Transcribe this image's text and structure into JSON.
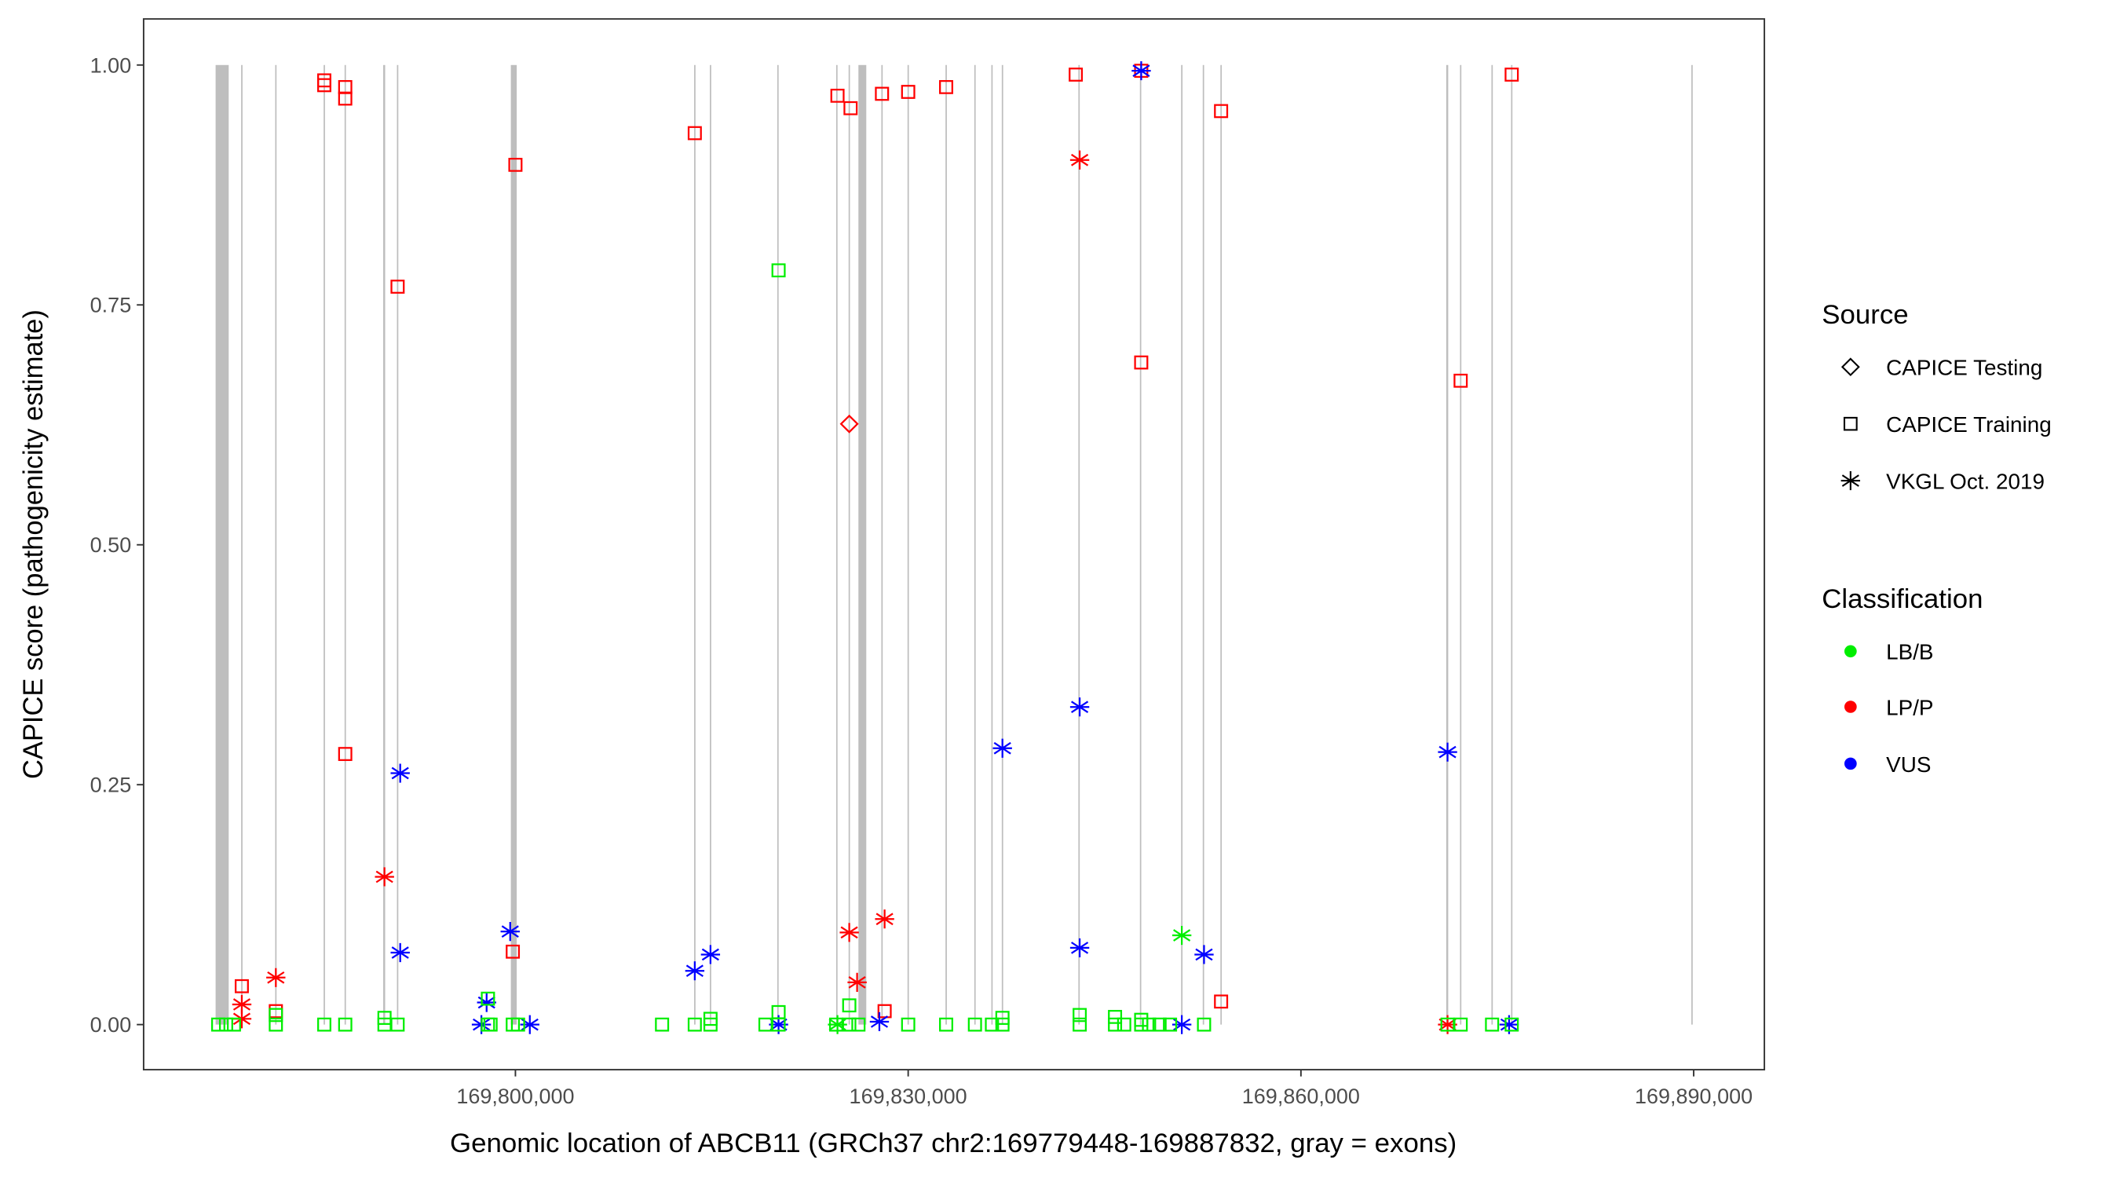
{
  "chart_data": {
    "type": "scatter",
    "title": "",
    "xlabel": "Genomic location of ABCB11 (GRCh37 chr2:169779448-169887832, gray = exons)",
    "ylabel": "CAPICE score (pathogenicity estimate)",
    "xlim": [
      169771600,
      169895400
    ],
    "ylim": [
      -0.047,
      1.048
    ],
    "x_ticks": [
      {
        "value": 169800000,
        "label": "169,800,000"
      },
      {
        "value": 169830000,
        "label": "169,830,000"
      },
      {
        "value": 169860000,
        "label": "169,860,000"
      },
      {
        "value": 169890000,
        "label": "169,890,000"
      }
    ],
    "y_ticks": [
      {
        "value": 0,
        "label": "0.00"
      },
      {
        "value": 0.25,
        "label": "0.25"
      },
      {
        "value": 0.5,
        "label": "0.50"
      },
      {
        "value": 0.75,
        "label": "0.75"
      },
      {
        "value": 1.0,
        "label": "1.00"
      }
    ],
    "grid": false,
    "exons": [
      [
        169777100,
        169778100
      ],
      [
        169779050,
        169779150
      ],
      [
        169781650,
        169781750
      ],
      [
        169785350,
        169785450
      ],
      [
        169786950,
        169787050
      ],
      [
        169789900,
        169790050
      ],
      [
        169790950,
        169791050
      ],
      [
        169799650,
        169800100
      ],
      [
        169813650,
        169813750
      ],
      [
        169814850,
        169814950
      ],
      [
        169820000,
        169820100
      ],
      [
        169824500,
        169824600
      ],
      [
        169825450,
        169825550
      ],
      [
        169826200,
        169826800
      ],
      [
        169827950,
        169828050
      ],
      [
        169829950,
        169830050
      ],
      [
        169832850,
        169832950
      ],
      [
        169835050,
        169835150
      ],
      [
        169836350,
        169836450
      ],
      [
        169837150,
        169837250
      ],
      [
        169843000,
        169843100
      ],
      [
        169847700,
        169847800
      ],
      [
        169850850,
        169850950
      ],
      [
        169852500,
        169852600
      ],
      [
        169853850,
        169853950
      ],
      [
        169871100,
        169871250
      ],
      [
        169872150,
        169872250
      ],
      [
        169874550,
        169874650
      ],
      [
        169876050,
        169876150
      ],
      [
        169889820,
        169889920
      ]
    ],
    "legend": {
      "placement": "right",
      "source_title": "Source",
      "source_entries": [
        {
          "label": "CAPICE Testing",
          "shape": "diamond"
        },
        {
          "label": "CAPICE Training",
          "shape": "square"
        },
        {
          "label": "VKGL Oct. 2019",
          "shape": "asterisk"
        }
      ],
      "class_title": "Classification",
      "class_entries": [
        {
          "label": "LB/B",
          "color": "#00ee00"
        },
        {
          "label": "LP/P",
          "color": "#ff0000"
        },
        {
          "label": "VUS",
          "color": "#0000ff"
        }
      ]
    },
    "colors": {
      "LB/B": "#00ee00",
      "LP/P": "#ff0000",
      "VUS": "#0000ff",
      "exon": "#bebebe"
    },
    "points": [
      [
        169785400,
        0.984,
        "CAPICE Training",
        "LP/P"
      ],
      [
        169785400,
        0.979,
        "CAPICE Training",
        "LP/P"
      ],
      [
        169787000,
        0.977,
        "CAPICE Training",
        "LP/P"
      ],
      [
        169787000,
        0.965,
        "CAPICE Training",
        "LP/P"
      ],
      [
        169791000,
        0.769,
        "CAPICE Training",
        "LP/P"
      ],
      [
        169787000,
        0.282,
        "CAPICE Training",
        "LP/P"
      ],
      [
        169800000,
        0.896,
        "CAPICE Training",
        "LP/P"
      ],
      [
        169779100,
        0.04,
        "CAPICE Training",
        "LP/P"
      ],
      [
        169781700,
        0.014,
        "CAPICE Training",
        "LP/P"
      ],
      [
        169799800,
        0.076,
        "CAPICE Training",
        "LP/P"
      ],
      [
        169813700,
        0.929,
        "CAPICE Training",
        "LP/P"
      ],
      [
        169824600,
        0.968,
        "CAPICE Training",
        "LP/P"
      ],
      [
        169825600,
        0.955,
        "CAPICE Training",
        "LP/P"
      ],
      [
        169828000,
        0.97,
        "CAPICE Training",
        "LP/P"
      ],
      [
        169830000,
        0.972,
        "CAPICE Training",
        "LP/P"
      ],
      [
        169832900,
        0.977,
        "CAPICE Training",
        "LP/P"
      ],
      [
        169842800,
        0.99,
        "CAPICE Training",
        "LP/P"
      ],
      [
        169847800,
        0.994,
        "CAPICE Training",
        "LP/P"
      ],
      [
        169847800,
        0.69,
        "CAPICE Training",
        "LP/P"
      ],
      [
        169853900,
        0.952,
        "CAPICE Training",
        "LP/P"
      ],
      [
        169853900,
        0.024,
        "CAPICE Training",
        "LP/P"
      ],
      [
        169876100,
        0.99,
        "CAPICE Training",
        "LP/P"
      ],
      [
        169872200,
        0.671,
        "CAPICE Training",
        "LP/P"
      ],
      [
        169828200,
        0.014,
        "CAPICE Training",
        "LP/P"
      ],
      [
        169825500,
        0.626,
        "CAPICE Testing",
        "LP/P"
      ],
      [
        169779100,
        0.021,
        "VKGL Oct. 2019",
        "LP/P"
      ],
      [
        169779100,
        0.006,
        "VKGL Oct. 2019",
        "LP/P"
      ],
      [
        169781700,
        0.049,
        "VKGL Oct. 2019",
        "LP/P"
      ],
      [
        169790000,
        0.154,
        "VKGL Oct. 2019",
        "LP/P"
      ],
      [
        169825500,
        0.096,
        "VKGL Oct. 2019",
        "LP/P"
      ],
      [
        169826100,
        0.044,
        "VKGL Oct. 2019",
        "LP/P"
      ],
      [
        169828200,
        0.11,
        "VKGL Oct. 2019",
        "LP/P"
      ],
      [
        169843100,
        0.901,
        "VKGL Oct. 2019",
        "LP/P"
      ],
      [
        169871200,
        0.0,
        "VKGL Oct. 2019",
        "LP/P"
      ],
      [
        169791200,
        0.262,
        "VKGL Oct. 2019",
        "VUS"
      ],
      [
        169791200,
        0.075,
        "VKGL Oct. 2019",
        "VUS"
      ],
      [
        169797800,
        0.023,
        "VKGL Oct. 2019",
        "VUS"
      ],
      [
        169797400,
        0.0,
        "VKGL Oct. 2019",
        "VUS"
      ],
      [
        169799600,
        0.097,
        "VKGL Oct. 2019",
        "VUS"
      ],
      [
        169801100,
        0.0,
        "VKGL Oct. 2019",
        "VUS"
      ],
      [
        169813700,
        0.056,
        "VKGL Oct. 2019",
        "VUS"
      ],
      [
        169814900,
        0.073,
        "VKGL Oct. 2019",
        "VUS"
      ],
      [
        169820100,
        0.0,
        "VKGL Oct. 2019",
        "VUS"
      ],
      [
        169827800,
        0.003,
        "VKGL Oct. 2019",
        "VUS"
      ],
      [
        169837200,
        0.288,
        "VKGL Oct. 2019",
        "VUS"
      ],
      [
        169843100,
        0.331,
        "VKGL Oct. 2019",
        "VUS"
      ],
      [
        169843100,
        0.08,
        "VKGL Oct. 2019",
        "VUS"
      ],
      [
        169847800,
        0.994,
        "VKGL Oct. 2019",
        "VUS"
      ],
      [
        169850900,
        0.0,
        "VKGL Oct. 2019",
        "VUS"
      ],
      [
        169852600,
        0.073,
        "VKGL Oct. 2019",
        "VUS"
      ],
      [
        169871200,
        0.284,
        "VKGL Oct. 2019",
        "VUS"
      ],
      [
        169875900,
        0.0,
        "VKGL Oct. 2019",
        "VUS"
      ],
      [
        169850900,
        0.093,
        "VKGL Oct. 2019",
        "LB/B"
      ],
      [
        169824600,
        0.0,
        "VKGL Oct. 2019",
        "LB/B"
      ],
      [
        169820100,
        0.786,
        "CAPICE Training",
        "LB/B"
      ],
      [
        169825500,
        0.02,
        "CAPICE Training",
        "LB/B"
      ],
      [
        169820100,
        0.013,
        "CAPICE Training",
        "LB/B"
      ],
      [
        169797900,
        0.027,
        "CAPICE Training",
        "LB/B"
      ],
      [
        169790000,
        0.007,
        "CAPICE Training",
        "LB/B"
      ],
      [
        169814900,
        0.006,
        "CAPICE Training",
        "LB/B"
      ],
      [
        169837200,
        0.007,
        "CAPICE Training",
        "LB/B"
      ],
      [
        169845800,
        0.008,
        "CAPICE Training",
        "LB/B"
      ],
      [
        169843100,
        0.01,
        "CAPICE Training",
        "LB/B"
      ],
      [
        169781700,
        0.01,
        "CAPICE Training",
        "LB/B"
      ],
      [
        169847800,
        0.005,
        "CAPICE Training",
        "LB/B"
      ],
      [
        169777300,
        0,
        "CAPICE Training",
        "LB/B"
      ],
      [
        169777900,
        0,
        "CAPICE Training",
        "LB/B"
      ],
      [
        169778500,
        0,
        "CAPICE Training",
        "LB/B"
      ],
      [
        169781700,
        0,
        "CAPICE Training",
        "LB/B"
      ],
      [
        169785400,
        0,
        "CAPICE Training",
        "LB/B"
      ],
      [
        169787000,
        0,
        "CAPICE Training",
        "LB/B"
      ],
      [
        169790000,
        0,
        "CAPICE Training",
        "LB/B"
      ],
      [
        169791000,
        0,
        "CAPICE Training",
        "LB/B"
      ],
      [
        169797900,
        0,
        "CAPICE Training",
        "LB/B"
      ],
      [
        169798100,
        0,
        "CAPICE Training",
        "LB/B"
      ],
      [
        169799800,
        0,
        "CAPICE Training",
        "LB/B"
      ],
      [
        169800200,
        0,
        "CAPICE Training",
        "LB/B"
      ],
      [
        169811200,
        0,
        "CAPICE Training",
        "LB/B"
      ],
      [
        169813700,
        0,
        "CAPICE Training",
        "LB/B"
      ],
      [
        169814900,
        0,
        "CAPICE Training",
        "LB/B"
      ],
      [
        169819100,
        0,
        "CAPICE Training",
        "LB/B"
      ],
      [
        169820100,
        0,
        "CAPICE Training",
        "LB/B"
      ],
      [
        169824500,
        0,
        "CAPICE Training",
        "LB/B"
      ],
      [
        169825500,
        0,
        "CAPICE Training",
        "LB/B"
      ],
      [
        169826200,
        0,
        "CAPICE Training",
        "LB/B"
      ],
      [
        169830000,
        0,
        "CAPICE Training",
        "LB/B"
      ],
      [
        169832900,
        0,
        "CAPICE Training",
        "LB/B"
      ],
      [
        169835100,
        0,
        "CAPICE Training",
        "LB/B"
      ],
      [
        169836400,
        0,
        "CAPICE Training",
        "LB/B"
      ],
      [
        169837200,
        0,
        "CAPICE Training",
        "LB/B"
      ],
      [
        169843100,
        0,
        "CAPICE Training",
        "LB/B"
      ],
      [
        169845800,
        0,
        "CAPICE Training",
        "LB/B"
      ],
      [
        169846500,
        0,
        "CAPICE Training",
        "LB/B"
      ],
      [
        169847800,
        0,
        "CAPICE Training",
        "LB/B"
      ],
      [
        169848400,
        0,
        "CAPICE Training",
        "LB/B"
      ],
      [
        169849200,
        0,
        "CAPICE Training",
        "LB/B"
      ],
      [
        169850000,
        0,
        "CAPICE Training",
        "LB/B"
      ],
      [
        169852600,
        0,
        "CAPICE Training",
        "LB/B"
      ],
      [
        169871200,
        0,
        "CAPICE Training",
        "LB/B"
      ],
      [
        169872200,
        0,
        "CAPICE Training",
        "LB/B"
      ],
      [
        169874600,
        0,
        "CAPICE Training",
        "LB/B"
      ],
      [
        169876100,
        0,
        "CAPICE Training",
        "LB/B"
      ]
    ]
  }
}
